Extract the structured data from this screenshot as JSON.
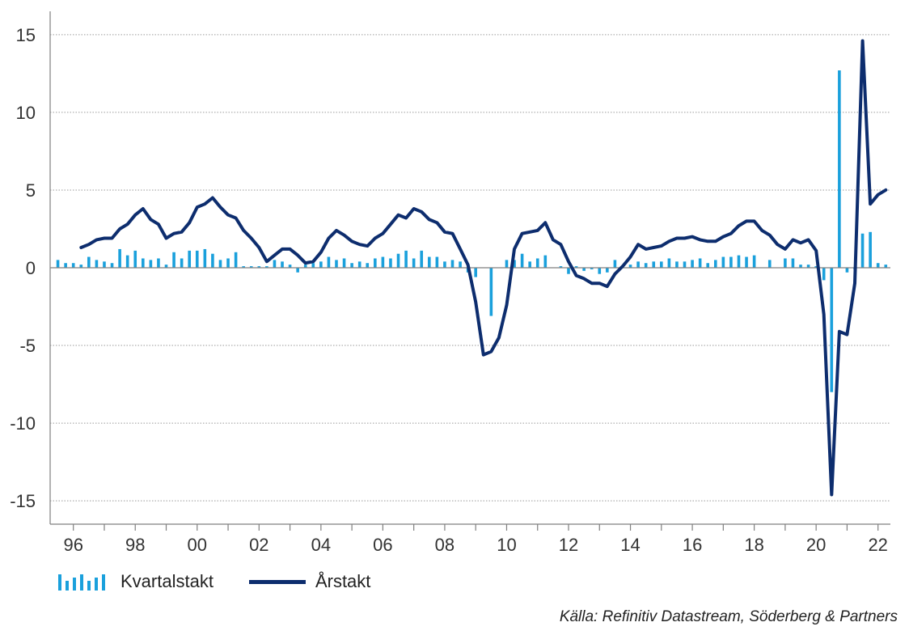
{
  "chart_data": {
    "type": "bar",
    "ylim": [
      -16.5,
      16.5
    ],
    "yticks": [
      15,
      10,
      5,
      0,
      -5,
      -10,
      -15
    ],
    "ytick_labels": [
      "15",
      "10",
      "5",
      "0",
      "-5",
      "-10",
      "-15"
    ],
    "xticks": [
      1996,
      1998,
      2000,
      2002,
      2004,
      2006,
      2008,
      2010,
      2012,
      2014,
      2016,
      2018,
      2020,
      2022
    ],
    "xtick_labels": [
      "96",
      "98",
      "00",
      "02",
      "04",
      "06",
      "08",
      "10",
      "12",
      "14",
      "16",
      "18",
      "20",
      "22"
    ],
    "xlim": [
      1995.25,
      2022.4
    ],
    "grid": "horizontal dotted",
    "colors": {
      "bars": "#1aa0dc",
      "line": "#0d2d6e"
    },
    "series": [
      {
        "name": "Kvartalstakt",
        "type": "bar",
        "x_start": 1995.5,
        "x_step": 0.25,
        "values": [
          0.5,
          0.3,
          0.3,
          0.2,
          0.7,
          0.5,
          0.4,
          0.3,
          1.2,
          0.8,
          1.1,
          0.6,
          0.5,
          0.6,
          0.2,
          1.0,
          0.6,
          1.1,
          1.1,
          1.2,
          0.9,
          0.5,
          0.6,
          1.0,
          0.1,
          0.1,
          0.1,
          0.1,
          0.5,
          0.4,
          0.2,
          -0.3,
          0.2,
          0.3,
          0.4,
          0.7,
          0.5,
          0.6,
          0.3,
          0.4,
          0.3,
          0.6,
          0.7,
          0.6,
          0.9,
          1.1,
          0.6,
          1.1,
          0.7,
          0.7,
          0.4,
          0.5,
          0.4,
          -0.3,
          -0.6,
          0.0,
          -3.1,
          0.0,
          0.5,
          0.5,
          0.9,
          0.4,
          0.6,
          0.8,
          0.0,
          0.1,
          -0.4,
          0.1,
          -0.2,
          -0.1,
          -0.4,
          -0.3,
          0.5,
          0.1,
          0.2,
          0.4,
          0.3,
          0.4,
          0.4,
          0.6,
          0.4,
          0.4,
          0.5,
          0.6,
          0.3,
          0.5,
          0.7,
          0.7,
          0.8,
          0.7,
          0.8,
          0.0,
          0.5,
          0.0,
          0.6,
          0.6,
          0.2,
          0.2,
          0.1,
          -0.8,
          -8.0,
          12.7,
          -0.3,
          -0.1,
          2.2,
          2.3,
          0.3,
          0.2
        ]
      },
      {
        "name": "Årstakt",
        "type": "line",
        "x_start": 1996.25,
        "x_step": 0.25,
        "values": [
          1.3,
          1.5,
          1.8,
          1.9,
          1.9,
          2.5,
          2.8,
          3.4,
          3.8,
          3.1,
          2.8,
          1.9,
          2.2,
          2.3,
          2.9,
          3.9,
          4.1,
          4.5,
          3.9,
          3.4,
          3.2,
          2.4,
          1.9,
          1.3,
          0.4,
          0.8,
          1.2,
          1.2,
          0.8,
          0.3,
          0.4,
          1.0,
          1.9,
          2.4,
          2.1,
          1.7,
          1.5,
          1.4,
          1.9,
          2.2,
          2.8,
          3.4,
          3.2,
          3.8,
          3.6,
          3.1,
          2.9,
          2.3,
          2.2,
          1.2,
          0.2,
          -2.2,
          -5.6,
          -5.4,
          -4.5,
          -2.4,
          1.2,
          2.2,
          2.3,
          2.4,
          2.9,
          1.8,
          1.5,
          0.4,
          -0.5,
          -0.7,
          -1.0,
          -1.0,
          -1.2,
          -0.4,
          0.1,
          0.7,
          1.5,
          1.2,
          1.3,
          1.4,
          1.7,
          1.9,
          1.9,
          2.0,
          1.8,
          1.7,
          1.7,
          2.0,
          2.2,
          2.7,
          3.0,
          3.0,
          2.4,
          2.1,
          1.5,
          1.2,
          1.8,
          1.6,
          1.8,
          1.1,
          -3.0,
          -14.6,
          -4.1,
          -4.3,
          -1.0,
          14.6,
          4.1,
          4.7,
          5.0
        ]
      }
    ]
  },
  "legend": {
    "bars_label": "Kvartalstakt",
    "line_label": "Årstakt"
  },
  "source": "Källa: Refinitiv Datastream, Söderberg & Partners"
}
